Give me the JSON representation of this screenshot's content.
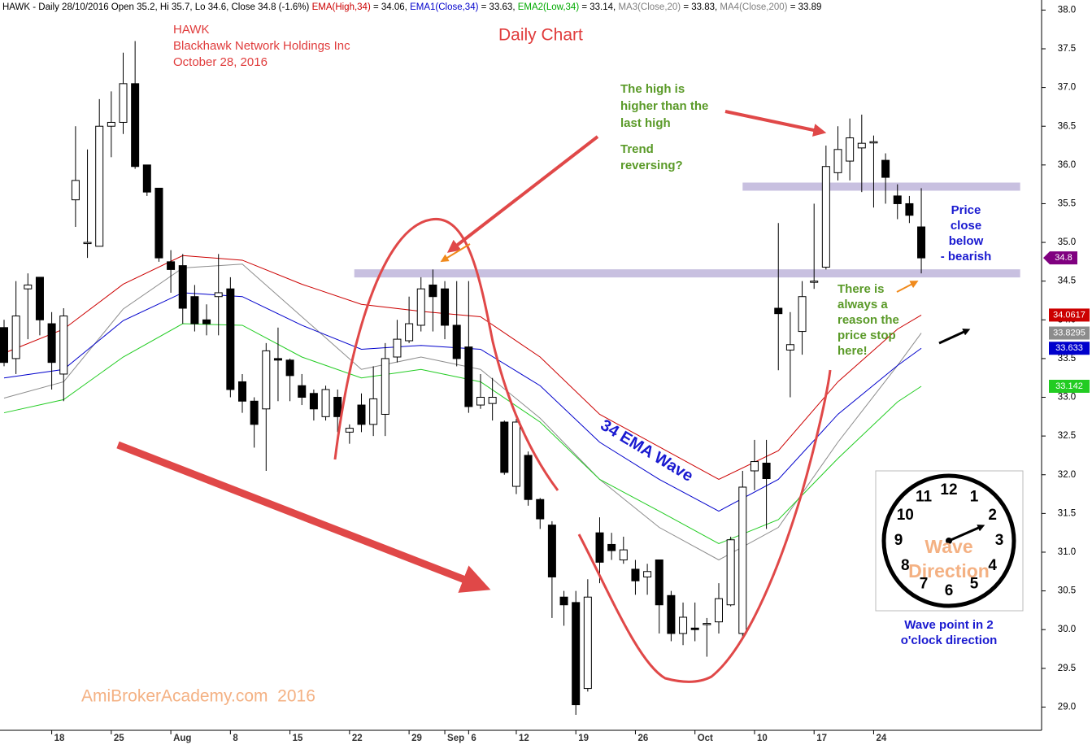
{
  "chart_data": {
    "type": "candlestick",
    "header": [
      {
        "text": "HAWK - Daily 28/10/2016 Open 35.2, Hi 35.7, Lo 34.6, Close 34.8 (-1.6%) ",
        "color": "#000000"
      },
      {
        "text": "EMA(High,34)",
        "color": "#cc0000"
      },
      {
        "text": " = 34.06, ",
        "color": "#000000"
      },
      {
        "text": "EMA1(Close,34)",
        "color": "#0000cc"
      },
      {
        "text": " = 33.63, ",
        "color": "#000000"
      },
      {
        "text": "EMA2(Low,34)",
        "color": "#00aa00"
      },
      {
        "text": " = 33.14, ",
        "color": "#000000"
      },
      {
        "text": "MA3(Close,20)",
        "color": "#808080"
      },
      {
        "text": " = 33.83, ",
        "color": "#000000"
      },
      {
        "text": "MA4(Close,200)",
        "color": "#808080"
      },
      {
        "text": " = 33.89",
        "color": "#000000"
      }
    ],
    "ylim": [
      28.7,
      38.13
    ],
    "yticks": [
      {
        "value": 29,
        "label": "29.0"
      },
      {
        "value": 29.5,
        "label": "29.5"
      },
      {
        "value": 30,
        "label": "30.0"
      },
      {
        "value": 30.5,
        "label": "30.5"
      },
      {
        "value": 31,
        "label": "31.0"
      },
      {
        "value": 31.5,
        "label": "31.5"
      },
      {
        "value": 32,
        "label": "32.0"
      },
      {
        "value": 32.5,
        "label": "32.5"
      },
      {
        "value": 33,
        "label": "33.0"
      },
      {
        "value": 33.5,
        "label": "33.5"
      },
      {
        "value": 34,
        "label": "34.0"
      },
      {
        "value": 34.5,
        "label": "34.5"
      },
      {
        "value": 35,
        "label": "35.0"
      },
      {
        "value": 35.5,
        "label": "35.5"
      },
      {
        "value": 36,
        "label": "36.0"
      },
      {
        "value": 36.5,
        "label": "36.5"
      },
      {
        "value": 37,
        "label": "37.0"
      },
      {
        "value": 37.5,
        "label": "37.5"
      },
      {
        "value": 38,
        "label": "38.0"
      }
    ],
    "xticks": [
      {
        "value": 4,
        "label": "18"
      },
      {
        "value": 9,
        "label": "25"
      },
      {
        "value": 14,
        "label": "Aug"
      },
      {
        "value": 19,
        "label": "8"
      },
      {
        "value": 24,
        "label": "15"
      },
      {
        "value": 29,
        "label": "22"
      },
      {
        "value": 34,
        "label": "29"
      },
      {
        "value": 37,
        "label": "Sep"
      },
      {
        "value": 39,
        "label": "6"
      },
      {
        "value": 43,
        "label": "12"
      },
      {
        "value": 48,
        "label": "19"
      },
      {
        "value": 53,
        "label": "26"
      },
      {
        "value": 58,
        "label": "Oct"
      },
      {
        "value": 63,
        "label": "10"
      },
      {
        "value": 68,
        "label": "17"
      },
      {
        "value": 73,
        "label": "24"
      }
    ],
    "candles": {
      "up_color": "#ffffff",
      "down_color": "#000000",
      "close_color": "#800080",
      "open": [
        33.9,
        33.5,
        34.4,
        34.55,
        33.95,
        33.3,
        35.55,
        35.0,
        34.95,
        36.5,
        36.55,
        37.05,
        36.0,
        35.7,
        34.75,
        34.7,
        34.3,
        34.0,
        34.3,
        34.4,
        33.2,
        32.95,
        32.85,
        33.5,
        33.48,
        33.15,
        33.05,
        32.75,
        33.0,
        32.55,
        32.9,
        32.65,
        32.78,
        33.52,
        33.73,
        33.93,
        34.45,
        34.4,
        33.93,
        33.65,
        32.9,
        32.92,
        32.68,
        31.85,
        32.25,
        31.68,
        31.35,
        30.42,
        30.35,
        29.24,
        31.25,
        31.1,
        30.9,
        30.78,
        30.68,
        30.9,
        30.44,
        29.95,
        30.02,
        30.08,
        30.1,
        30.32,
        29.95,
        32.05,
        32.15,
        34.15,
        33.61,
        33.85,
        34.5,
        34.68,
        35.9,
        36.05,
        36.22,
        36.3,
        36.06,
        35.6,
        35.5,
        35.2
      ],
      "high": [
        34.0,
        34.5,
        34.6,
        34.55,
        34.1,
        34.15,
        36.5,
        36.2,
        36.85,
        36.95,
        37.45,
        37.6,
        35.7,
        35.7,
        34.9,
        34.85,
        34.45,
        34.2,
        34.85,
        34.55,
        33.3,
        33.0,
        33.7,
        33.9,
        33.5,
        33.3,
        33.1,
        33.15,
        33.1,
        32.65,
        33.05,
        33.4,
        33.7,
        34.0,
        34.3,
        34.55,
        34.65,
        34.5,
        34.5,
        34.5,
        33.3,
        33.25,
        32.7,
        32.72,
        32.3,
        31.7,
        31.4,
        30.5,
        30.5,
        30.65,
        31.45,
        31.25,
        31.2,
        30.9,
        30.85,
        30.9,
        30.5,
        30.35,
        30.35,
        30.15,
        30.6,
        31.2,
        32.05,
        32.45,
        32.45,
        35.25,
        34.1,
        34.5,
        35.5,
        36.25,
        36.5,
        36.6,
        36.65,
        36.38,
        36.15,
        35.75,
        35.6,
        35.7
      ],
      "low": [
        33.4,
        33.3,
        33.75,
        33.8,
        33.1,
        32.95,
        35.2,
        34.8,
        34.95,
        36.1,
        36.4,
        35.95,
        35.6,
        34.75,
        34.35,
        33.95,
        33.85,
        33.8,
        33.8,
        33.0,
        32.8,
        32.35,
        32.05,
        32.95,
        32.95,
        32.9,
        32.7,
        32.7,
        32.55,
        32.4,
        32.55,
        32.5,
        32.5,
        33.45,
        33.7,
        33.85,
        33.85,
        33.75,
        33.4,
        32.8,
        32.85,
        32.7,
        32.0,
        31.75,
        31.6,
        31.3,
        30.15,
        30.05,
        28.9,
        29.2,
        30.6,
        30.9,
        30.85,
        30.45,
        30.45,
        29.95,
        29.85,
        29.8,
        29.85,
        29.65,
        29.95,
        30.3,
        29.9,
        31.8,
        31.3,
        33.35,
        33.0,
        33.55,
        34.4,
        34.65,
        35.8,
        35.8,
        35.65,
        35.45,
        35.5,
        35.3,
        35.25,
        34.6
      ],
      "close": [
        33.45,
        34.05,
        34.45,
        34.0,
        33.45,
        34.05,
        35.8,
        35.0,
        36.5,
        36.55,
        37.05,
        35.98,
        35.65,
        34.8,
        34.65,
        34.15,
        33.95,
        33.95,
        34.35,
        33.1,
        32.95,
        32.65,
        33.6,
        33.48,
        33.28,
        33.0,
        32.85,
        33.1,
        32.75,
        32.6,
        32.65,
        32.98,
        33.5,
        33.75,
        33.95,
        34.4,
        34.3,
        33.93,
        33.5,
        32.88,
        33.0,
        33.0,
        32.03,
        32.68,
        31.68,
        31.43,
        30.68,
        30.32,
        29.03,
        30.42,
        30.87,
        31.02,
        31.03,
        30.63,
        30.75,
        30.32,
        29.95,
        30.16,
        30.0,
        30.08,
        30.4,
        31.16,
        31.84,
        32.17,
        31.95,
        34.08,
        33.68,
        34.3,
        34.5,
        35.98,
        36.2,
        36.35,
        36.28,
        36.3,
        35.84,
        35.5,
        35.35,
        34.8
      ]
    },
    "series": [
      {
        "name": "EMA(High,34)",
        "color": "#cc0000",
        "x": [
          0,
          5,
          10,
          15,
          20,
          25,
          30,
          35,
          40,
          45,
          50,
          55,
          60,
          65,
          70,
          75,
          77
        ],
        "values": [
          33.57,
          33.88,
          34.46,
          34.83,
          34.77,
          34.46,
          34.2,
          34.11,
          34.04,
          33.52,
          32.78,
          32.36,
          31.94,
          32.31,
          33.2,
          33.88,
          34.0617
        ]
      },
      {
        "name": "MA3(Close,20)",
        "color": "#8c8c8c",
        "x": [
          0,
          5,
          10,
          15,
          20,
          25,
          30,
          35,
          40,
          45,
          50,
          55,
          60,
          65,
          70,
          75,
          77
        ],
        "values": [
          32.99,
          33.2,
          34.14,
          34.67,
          34.72,
          34.04,
          33.36,
          33.52,
          33.36,
          32.73,
          31.94,
          31.32,
          30.9,
          31.32,
          32.42,
          33.41,
          33.8295
        ]
      },
      {
        "name": "EMA1(Close,34)",
        "color": "#0000cc",
        "x": [
          0,
          5,
          10,
          15,
          20,
          25,
          30,
          35,
          40,
          45,
          50,
          55,
          60,
          65,
          70,
          75,
          77
        ],
        "values": [
          33.25,
          33.36,
          33.99,
          34.35,
          34.3,
          33.93,
          33.62,
          33.67,
          33.62,
          33.15,
          32.42,
          31.94,
          31.53,
          31.94,
          32.78,
          33.41,
          33.633
        ]
      },
      {
        "name": "EMA2(Low,34)",
        "color": "#22cc22",
        "x": [
          0,
          5,
          10,
          15,
          20,
          25,
          30,
          35,
          40,
          45,
          50,
          55,
          60,
          65,
          70,
          75,
          77
        ],
        "values": [
          32.8,
          32.97,
          33.52,
          33.95,
          33.93,
          33.52,
          33.25,
          33.36,
          33.2,
          32.68,
          31.94,
          31.53,
          31.11,
          31.42,
          32.21,
          32.94,
          33.142
        ]
      }
    ],
    "levels": [
      {
        "value": 35.72,
        "x": [
          62,
          85.3
        ],
        "color": "#c8c0e0"
      },
      {
        "value": 34.6,
        "x": [
          29.4,
          85.3
        ],
        "color": "#c8c0e0"
      }
    ],
    "annotations": [
      {
        "lines": [
          "HAWK",
          "Blackhawk Network Holdings Inc",
          "October 28, 2016"
        ],
        "color": "#e03c3c"
      },
      {
        "lines": [
          "Daily Chart"
        ],
        "color": "#e03c3c"
      },
      {
        "lines": [
          "The high is",
          "higher than the",
          "last high"
        ],
        "color": "#5a9a28"
      },
      {
        "lines": [
          "Trend",
          "reversing?"
        ],
        "color": "#5a9a28"
      },
      {
        "lines": [
          "Price",
          "close",
          "below",
          "- bearish"
        ],
        "color": "#1a1ad0"
      },
      {
        "lines": [
          "There is",
          "always a",
          "reason the",
          "price stop",
          "here!"
        ],
        "color": "#5a9a28"
      },
      {
        "lines": [
          "Wave point in 2",
          "o'clock direction"
        ],
        "color": "#1a1ad0"
      },
      {
        "lines": [
          "AmiBrokerAcademy.com  2016"
        ],
        "color": "#f4b183"
      },
      {
        "lines": [
          "34 EMA Wave"
        ],
        "color": "#1a1ad0"
      }
    ],
    "clock": {
      "numbers": [
        12,
        1,
        2,
        3,
        4,
        5,
        6,
        7,
        8,
        9,
        10,
        11
      ],
      "lines": [
        "Wave",
        "Direction"
      ],
      "color": "#f4b183"
    }
  }
}
